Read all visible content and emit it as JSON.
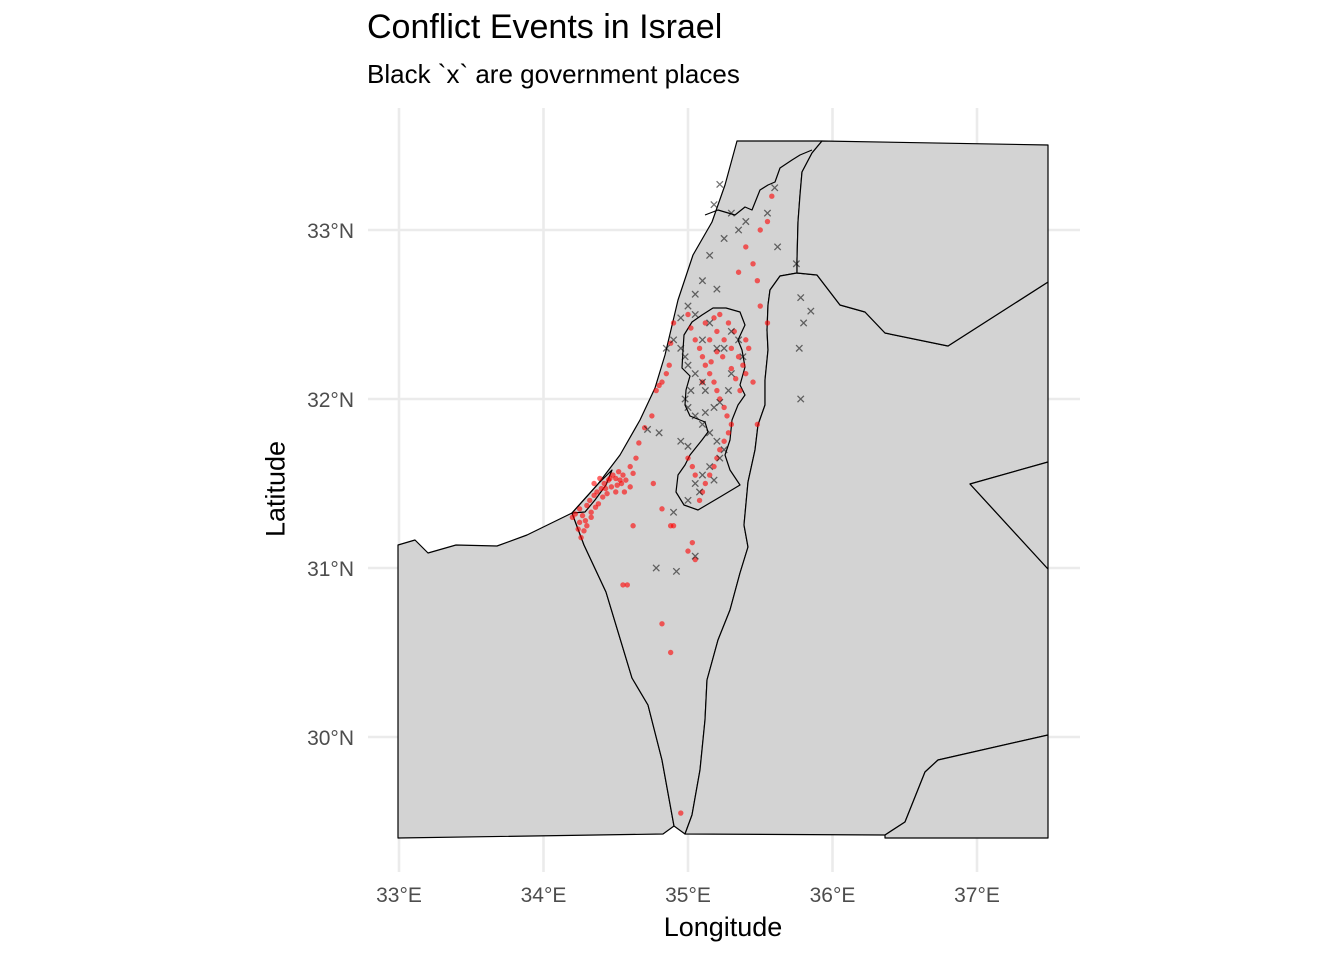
{
  "chart_data": {
    "type": "scatter",
    "title": "Conflict Events in Israel",
    "subtitle": "Black `x` are government places",
    "xlabel": "Longitude",
    "ylabel": "Latitude",
    "xlim": [
      32.97,
      37.5
    ],
    "ylim": [
      29.4,
      33.55
    ],
    "x_ticks": [
      33,
      34,
      35,
      36,
      37
    ],
    "x_tick_labels": [
      "33°E",
      "34°E",
      "35°E",
      "36°E",
      "37°E"
    ],
    "y_ticks": [
      30,
      31,
      32,
      33
    ],
    "y_tick_labels": [
      "30°N",
      "31°N",
      "32°N",
      "33°N"
    ],
    "grid": true,
    "background": "#d3d3d3",
    "series": [
      {
        "marker": "point",
        "color": "#ff0000",
        "points": [
          [
            34.22,
            31.32
          ],
          [
            34.25,
            31.35
          ],
          [
            34.27,
            31.31
          ],
          [
            34.29,
            31.28
          ],
          [
            34.3,
            31.37
          ],
          [
            34.32,
            31.4
          ],
          [
            34.33,
            31.3
          ],
          [
            34.35,
            31.43
          ],
          [
            34.37,
            31.45
          ],
          [
            34.38,
            31.38
          ],
          [
            34.4,
            31.47
          ],
          [
            34.42,
            31.5
          ],
          [
            34.44,
            31.44
          ],
          [
            34.45,
            31.52
          ],
          [
            34.47,
            31.48
          ],
          [
            34.48,
            31.55
          ],
          [
            34.5,
            31.53
          ],
          [
            34.52,
            31.57
          ],
          [
            34.54,
            31.5
          ],
          [
            34.55,
            31.55
          ],
          [
            34.25,
            31.27
          ],
          [
            34.28,
            31.22
          ],
          [
            34.26,
            31.18
          ],
          [
            34.3,
            31.25
          ],
          [
            34.33,
            31.33
          ],
          [
            34.36,
            31.36
          ],
          [
            34.41,
            31.42
          ],
          [
            34.43,
            31.47
          ],
          [
            34.46,
            31.53
          ],
          [
            34.51,
            31.49
          ],
          [
            34.53,
            31.52
          ],
          [
            34.35,
            31.5
          ],
          [
            34.39,
            31.53
          ],
          [
            34.5,
            31.45
          ],
          [
            34.56,
            31.45
          ],
          [
            34.57,
            31.52
          ],
          [
            34.6,
            31.48
          ],
          [
            34.62,
            31.56
          ],
          [
            34.2,
            31.3
          ],
          [
            34.24,
            31.23
          ],
          [
            34.6,
            31.6
          ],
          [
            34.64,
            31.65
          ],
          [
            34.66,
            31.74
          ],
          [
            34.7,
            31.83
          ],
          [
            34.75,
            31.9
          ],
          [
            34.78,
            32.05
          ],
          [
            34.8,
            32.08
          ],
          [
            34.82,
            32.1
          ],
          [
            34.85,
            32.15
          ],
          [
            34.87,
            32.2
          ],
          [
            34.88,
            32.33
          ],
          [
            34.9,
            32.45
          ],
          [
            34.76,
            31.5
          ],
          [
            34.82,
            31.35
          ],
          [
            34.62,
            31.25
          ],
          [
            34.88,
            31.25
          ],
          [
            35.0,
            32.5
          ],
          [
            35.02,
            32.42
          ],
          [
            35.05,
            32.35
          ],
          [
            35.08,
            32.3
          ],
          [
            35.1,
            32.25
          ],
          [
            35.12,
            32.2
          ],
          [
            35.15,
            32.15
          ],
          [
            35.18,
            32.1
          ],
          [
            35.2,
            32.05
          ],
          [
            35.22,
            32.0
          ],
          [
            35.25,
            31.95
          ],
          [
            35.27,
            31.9
          ],
          [
            35.3,
            31.85
          ],
          [
            35.28,
            31.8
          ],
          [
            35.25,
            31.75
          ],
          [
            35.22,
            31.7
          ],
          [
            35.2,
            31.65
          ],
          [
            35.18,
            31.6
          ],
          [
            35.15,
            31.55
          ],
          [
            35.12,
            31.5
          ],
          [
            35.1,
            31.45
          ],
          [
            35.08,
            31.4
          ],
          [
            35.05,
            31.55
          ],
          [
            35.03,
            31.6
          ],
          [
            35.0,
            31.65
          ],
          [
            35.25,
            32.35
          ],
          [
            35.3,
            32.3
          ],
          [
            35.35,
            32.25
          ],
          [
            35.38,
            32.2
          ],
          [
            35.4,
            32.15
          ],
          [
            35.32,
            32.4
          ],
          [
            35.28,
            32.45
          ],
          [
            35.22,
            32.5
          ],
          [
            35.18,
            32.48
          ],
          [
            35.12,
            32.45
          ],
          [
            35.4,
            32.35
          ],
          [
            35.42,
            32.3
          ],
          [
            35.45,
            32.1
          ],
          [
            35.48,
            31.85
          ],
          [
            35.36,
            32.05
          ],
          [
            35.33,
            32.12
          ],
          [
            35.3,
            32.18
          ],
          [
            35.15,
            32.35
          ],
          [
            35.2,
            32.28
          ],
          [
            35.1,
            32.1
          ],
          [
            35.35,
            32.75
          ],
          [
            35.4,
            32.9
          ],
          [
            35.45,
            32.8
          ],
          [
            35.48,
            32.7
          ],
          [
            35.5,
            32.55
          ],
          [
            35.55,
            32.45
          ],
          [
            35.55,
            33.05
          ],
          [
            35.5,
            33.0
          ],
          [
            35.58,
            33.2
          ],
          [
            35.2,
            32.4
          ],
          [
            35.24,
            32.25
          ],
          [
            35.16,
            32.22
          ],
          [
            34.82,
            30.67
          ],
          [
            34.88,
            30.5
          ],
          [
            34.95,
            29.55
          ],
          [
            34.55,
            30.9
          ],
          [
            34.58,
            30.9
          ],
          [
            35.05,
            31.05
          ],
          [
            35.03,
            31.15
          ],
          [
            34.9,
            31.25
          ],
          [
            35.0,
            31.1
          ]
        ]
      },
      {
        "marker": "x",
        "color": "#000000",
        "points": [
          [
            35.22,
            33.27
          ],
          [
            35.18,
            33.15
          ],
          [
            35.3,
            33.1
          ],
          [
            35.35,
            33.0
          ],
          [
            35.25,
            32.95
          ],
          [
            35.15,
            32.85
          ],
          [
            35.1,
            32.7
          ],
          [
            35.05,
            32.62
          ],
          [
            35.2,
            32.65
          ],
          [
            34.95,
            32.48
          ],
          [
            35.0,
            32.55
          ],
          [
            35.05,
            32.5
          ],
          [
            34.9,
            32.35
          ],
          [
            34.85,
            32.3
          ],
          [
            34.95,
            32.3
          ],
          [
            34.98,
            32.25
          ],
          [
            35.0,
            32.2
          ],
          [
            35.05,
            32.15
          ],
          [
            35.1,
            32.1
          ],
          [
            35.02,
            32.05
          ],
          [
            34.98,
            32.0
          ],
          [
            35.0,
            31.95
          ],
          [
            35.05,
            31.9
          ],
          [
            35.1,
            31.85
          ],
          [
            35.15,
            31.8
          ],
          [
            35.2,
            31.75
          ],
          [
            35.25,
            31.7
          ],
          [
            35.22,
            31.65
          ],
          [
            35.15,
            31.6
          ],
          [
            35.1,
            31.55
          ],
          [
            35.05,
            31.5
          ],
          [
            35.08,
            31.45
          ],
          [
            35.0,
            31.4
          ],
          [
            34.9,
            31.33
          ],
          [
            34.78,
            31.0
          ],
          [
            34.92,
            30.98
          ],
          [
            35.05,
            31.07
          ],
          [
            34.72,
            31.82
          ],
          [
            34.8,
            31.8
          ],
          [
            34.95,
            31.75
          ],
          [
            35.0,
            31.72
          ],
          [
            35.3,
            32.4
          ],
          [
            35.35,
            32.35
          ],
          [
            35.38,
            32.25
          ],
          [
            35.3,
            32.15
          ],
          [
            35.28,
            32.05
          ],
          [
            35.22,
            31.98
          ],
          [
            35.18,
            31.95
          ],
          [
            35.12,
            31.92
          ],
          [
            35.25,
            32.3
          ],
          [
            35.15,
            32.45
          ],
          [
            35.4,
            33.05
          ],
          [
            35.6,
            33.25
          ],
          [
            35.75,
            32.8
          ],
          [
            35.78,
            32.6
          ],
          [
            35.8,
            32.45
          ],
          [
            35.85,
            32.52
          ],
          [
            35.77,
            32.3
          ],
          [
            35.78,
            32.0
          ],
          [
            35.55,
            33.1
          ],
          [
            35.62,
            32.9
          ],
          [
            35.2,
            32.3
          ],
          [
            35.1,
            32.35
          ],
          [
            35.12,
            32.05
          ],
          [
            35.18,
            31.52
          ]
        ]
      }
    ]
  }
}
